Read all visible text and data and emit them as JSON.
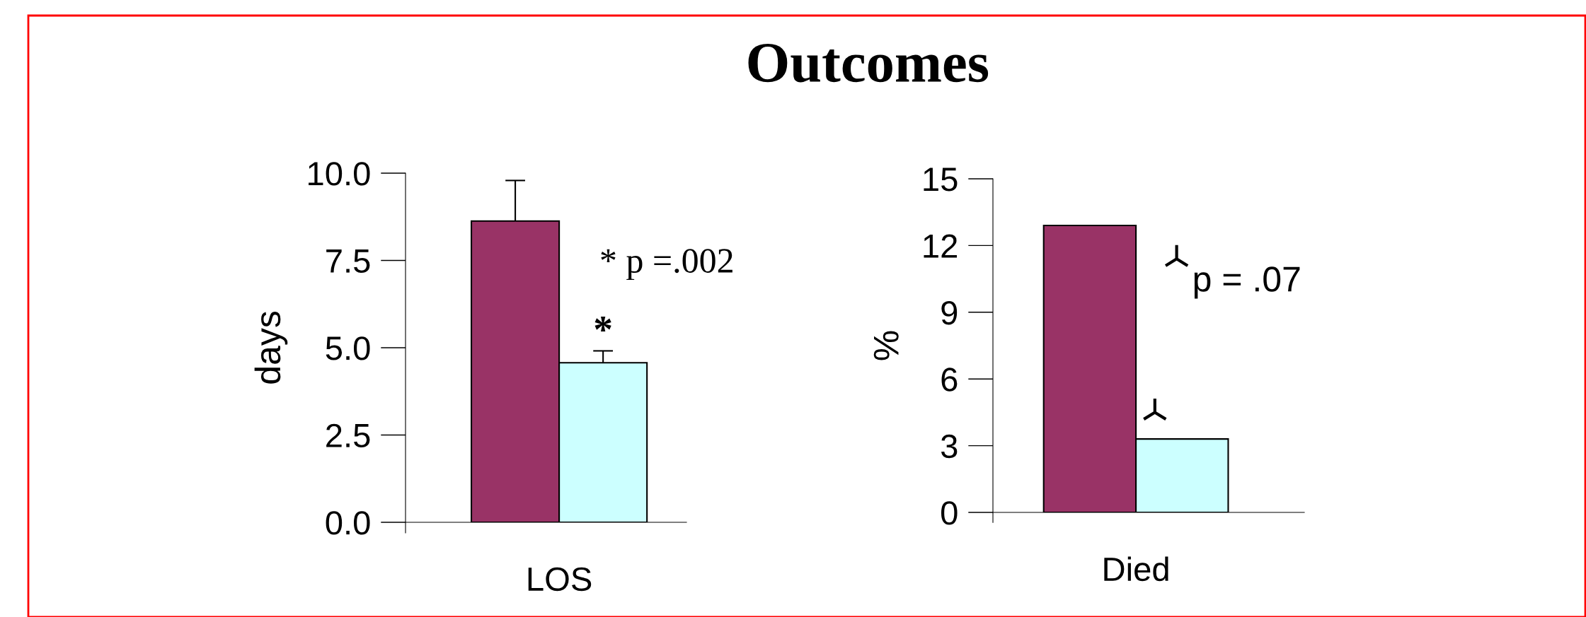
{
  "chart_data": [
    {
      "type": "bar",
      "ylabel": "days",
      "categories": [
        "LOS"
      ],
      "series": [
        {
          "color": "#993366",
          "values": [
            8.63
          ],
          "errors": [
            1.16
          ]
        },
        {
          "color": "#ccffff",
          "values": [
            4.57
          ],
          "errors": [
            0.34
          ]
        }
      ],
      "ylim": [
        0,
        10
      ],
      "yticks": [
        {
          "value": 0,
          "label": "0.0"
        },
        {
          "value": 2.5,
          "label": "2.5"
        },
        {
          "value": 5,
          "label": "5.0"
        },
        {
          "value": 7.5,
          "label": "7.5"
        },
        {
          "value": 10,
          "label": "10.0"
        }
      ],
      "annotations": [
        "* p =.002",
        "*"
      ],
      "grid": false,
      "legend": false
    },
    {
      "type": "bar",
      "title": "Outcomes",
      "ylabel": "%",
      "categories": [
        "Died"
      ],
      "series": [
        {
          "color": "#993366",
          "values": [
            12.9
          ]
        },
        {
          "color": "#ccffff",
          "values": [
            3.3
          ]
        }
      ],
      "ylim": [
        0,
        15
      ],
      "yticks": [
        0,
        3,
        6,
        9,
        12,
        15
      ],
      "annotations": [
        "p = .07"
      ],
      "grid": false,
      "legend": false
    }
  ]
}
